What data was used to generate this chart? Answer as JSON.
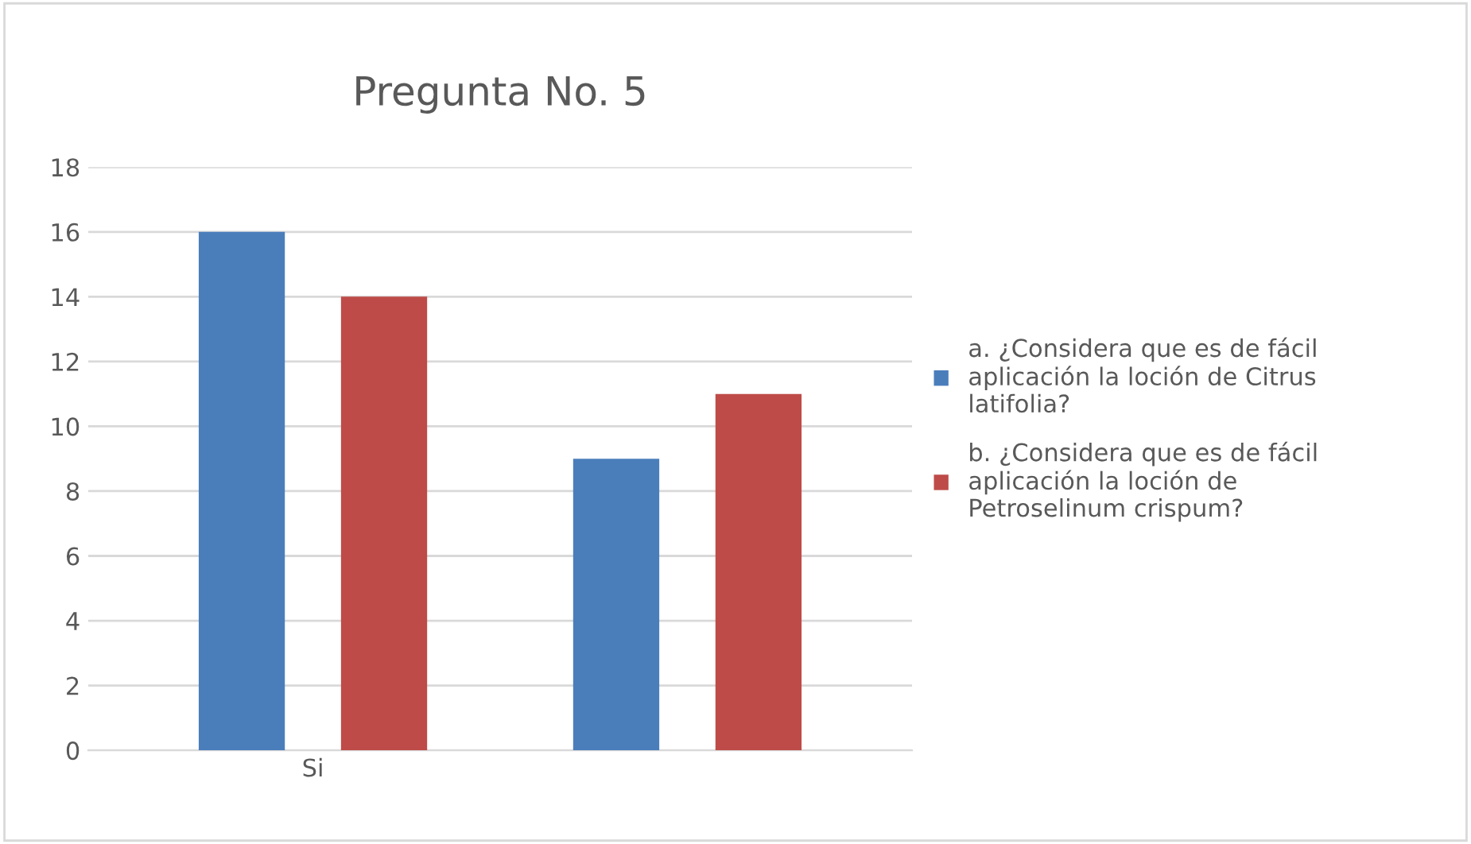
{
  "chart_data": {
    "type": "bar",
    "title": "Pregunta No. 5",
    "categories": [
      "Si",
      null
    ],
    "series": [
      {
        "name": "a. ¿Considera que es de fácil\naplicación la loción de Citrus\nlatifolia?",
        "color": "#4a7ebb",
        "values": [
          16,
          9
        ]
      },
      {
        "name": "b. ¿Considera que es de fácil\naplicación la loción de\nPetroselinum crispum?",
        "color": "#be4b48",
        "values": [
          14,
          11
        ]
      }
    ],
    "ylim": [
      0,
      18
    ],
    "yticks": [
      0,
      2,
      4,
      6,
      8,
      10,
      12,
      14,
      16,
      18
    ],
    "grid": "y",
    "legend": "right"
  }
}
